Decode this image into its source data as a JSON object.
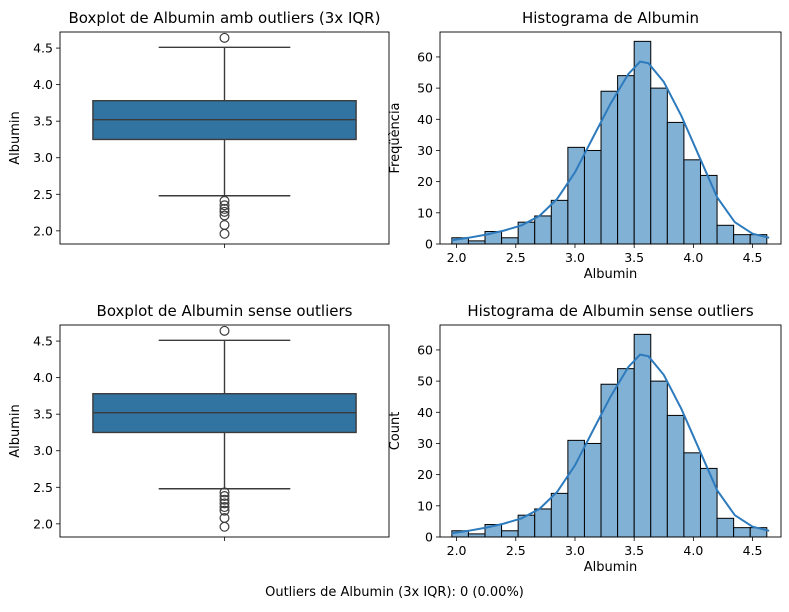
{
  "colors": {
    "box": "#3274a1",
    "hist": "#82b1d6",
    "kde": "#2d7bbd",
    "edge": "#000000",
    "line": "#3b3b3b"
  },
  "footer": "Outliers de Albumin (3x IQR): 0 (0.00%)",
  "chart_data": [
    {
      "type": "box",
      "title": "Boxplot de Albumin amb outliers (3x IQR)",
      "xlabel": "",
      "ylabel": "Albumin",
      "ylim": [
        1.82,
        4.72
      ],
      "yticks": [
        "2.0",
        "2.5",
        "3.0",
        "3.5",
        "4.0",
        "4.5"
      ],
      "box": {
        "whisker_low": 2.48,
        "q1": 3.25,
        "median": 3.52,
        "q3": 3.78,
        "whisker_high": 4.51
      },
      "fliers": [
        4.64,
        2.41,
        2.35,
        2.3,
        2.26,
        2.21,
        2.08,
        1.96
      ]
    },
    {
      "type": "histogram",
      "title": "Histograma de Albumin",
      "xlabel": "Albumin",
      "ylabel": "Freqüència",
      "xlim": [
        1.86,
        4.74
      ],
      "ylim": [
        0,
        68
      ],
      "xticks": [
        "2.0",
        "2.5",
        "3.0",
        "3.5",
        "4.0",
        "4.5"
      ],
      "yticks": [
        "0",
        "10",
        "20",
        "30",
        "40",
        "50",
        "60"
      ],
      "bin_start": 1.96,
      "bin_width": 0.14,
      "counts": [
        2,
        1,
        4,
        2,
        7,
        9,
        14,
        31,
        30,
        49,
        54,
        65,
        50,
        39,
        27,
        22,
        6,
        3,
        3
      ],
      "kde": [
        [
          1.96,
          1.2
        ],
        [
          2.1,
          2.0
        ],
        [
          2.25,
          3.0
        ],
        [
          2.4,
          4.3
        ],
        [
          2.55,
          6.0
        ],
        [
          2.7,
          9.0
        ],
        [
          2.85,
          14.5
        ],
        [
          3.0,
          23.0
        ],
        [
          3.15,
          34.0
        ],
        [
          3.3,
          45.0
        ],
        [
          3.45,
          54.5
        ],
        [
          3.55,
          58.5
        ],
        [
          3.62,
          58.0
        ],
        [
          3.75,
          52.0
        ],
        [
          3.9,
          41.0
        ],
        [
          4.05,
          28.0
        ],
        [
          4.2,
          15.0
        ],
        [
          4.35,
          7.0
        ],
        [
          4.5,
          3.3
        ],
        [
          4.64,
          2.0
        ]
      ]
    },
    {
      "type": "box",
      "title": "Boxplot de Albumin sense outliers",
      "xlabel": "",
      "ylabel": "Albumin",
      "ylim": [
        1.82,
        4.72
      ],
      "yticks": [
        "2.0",
        "2.5",
        "3.0",
        "3.5",
        "4.0",
        "4.5"
      ],
      "box": {
        "whisker_low": 2.48,
        "q1": 3.25,
        "median": 3.52,
        "q3": 3.78,
        "whisker_high": 4.51
      },
      "fliers": [
        4.64,
        2.43,
        2.38,
        2.33,
        2.28,
        2.23,
        2.18,
        2.08,
        1.96
      ]
    },
    {
      "type": "histogram",
      "title": "Histograma de Albumin sense outliers",
      "xlabel": "Albumin",
      "ylabel": "Count",
      "xlim": [
        1.86,
        4.74
      ],
      "ylim": [
        0,
        68
      ],
      "xticks": [
        "2.0",
        "2.5",
        "3.0",
        "3.5",
        "4.0",
        "4.5"
      ],
      "yticks": [
        "0",
        "10",
        "20",
        "30",
        "40",
        "50",
        "60"
      ],
      "bin_start": 1.96,
      "bin_width": 0.14,
      "counts": [
        2,
        1,
        4,
        2,
        7,
        9,
        14,
        31,
        30,
        49,
        54,
        65,
        50,
        39,
        27,
        22,
        6,
        3,
        3
      ],
      "kde": [
        [
          1.96,
          1.2
        ],
        [
          2.1,
          2.0
        ],
        [
          2.25,
          3.0
        ],
        [
          2.4,
          4.3
        ],
        [
          2.55,
          6.0
        ],
        [
          2.7,
          9.0
        ],
        [
          2.85,
          14.5
        ],
        [
          3.0,
          23.0
        ],
        [
          3.15,
          34.0
        ],
        [
          3.3,
          45.0
        ],
        [
          3.45,
          54.5
        ],
        [
          3.55,
          58.5
        ],
        [
          3.62,
          58.0
        ],
        [
          3.75,
          52.0
        ],
        [
          3.9,
          41.0
        ],
        [
          4.05,
          28.0
        ],
        [
          4.2,
          15.0
        ],
        [
          4.35,
          7.0
        ],
        [
          4.5,
          3.3
        ],
        [
          4.64,
          2.0
        ]
      ]
    }
  ]
}
